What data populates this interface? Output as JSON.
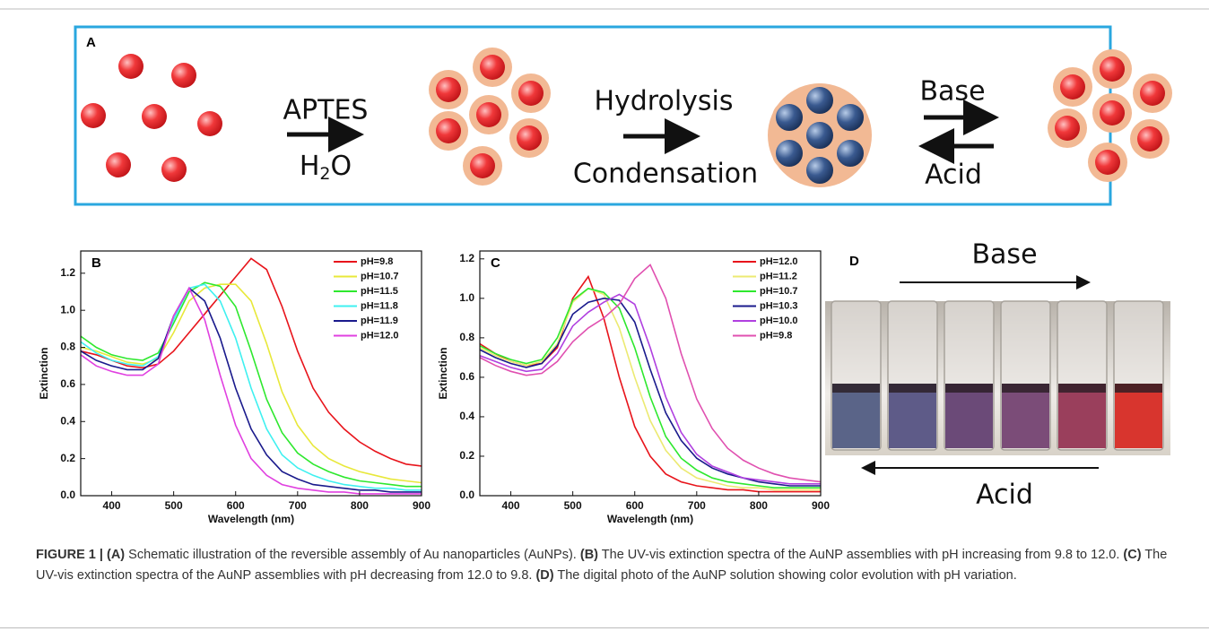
{
  "panel_a": {
    "label": "A",
    "step1_above": "APTES",
    "step1_below": {
      "before": "H",
      "subscript": "2",
      "after": "O"
    },
    "step2_above": "Hydrolysis",
    "step2_below": "Condensation",
    "forward": "Base",
    "backward": "Acid"
  },
  "chart_data": [
    {
      "type": "line",
      "panel_label": "B",
      "x_label": "Wavelength (nm)",
      "y_label": "Extinction",
      "x": [
        350,
        375,
        400,
        425,
        450,
        475,
        500,
        525,
        550,
        575,
        600,
        625,
        650,
        675,
        700,
        725,
        750,
        775,
        800,
        825,
        850,
        875,
        900
      ],
      "xlim": [
        350,
        900
      ],
      "xticks": [
        400,
        500,
        600,
        700,
        800,
        900
      ],
      "ylim": [
        0,
        1.32
      ],
      "yticks": [
        {
          "value": 0,
          "label": "0.0"
        },
        0.2,
        0.4,
        0.6,
        0.8,
        {
          "value": 1,
          "label": "1.0"
        },
        1.2
      ],
      "grid": false,
      "legend": "upper right",
      "series": [
        {
          "name": "pH=9.8",
          "color": "#e8141b",
          "values": [
            0.78,
            0.76,
            0.73,
            0.7,
            0.69,
            0.71,
            0.78,
            0.88,
            0.98,
            1.08,
            1.18,
            1.28,
            1.22,
            1.02,
            0.78,
            0.58,
            0.45,
            0.36,
            0.29,
            0.24,
            0.2,
            0.17,
            0.16
          ]
        },
        {
          "name": "pH=10.7",
          "color": "#e8e83a",
          "values": [
            0.8,
            0.78,
            0.75,
            0.72,
            0.71,
            0.74,
            0.88,
            1.05,
            1.12,
            1.14,
            1.14,
            1.05,
            0.82,
            0.56,
            0.38,
            0.27,
            0.2,
            0.16,
            0.13,
            0.11,
            0.09,
            0.08,
            0.07
          ]
        },
        {
          "name": "pH=11.5",
          "color": "#2ee82e",
          "values": [
            0.86,
            0.8,
            0.76,
            0.74,
            0.73,
            0.77,
            0.93,
            1.1,
            1.15,
            1.13,
            1.02,
            0.78,
            0.52,
            0.34,
            0.23,
            0.17,
            0.13,
            0.1,
            0.08,
            0.07,
            0.06,
            0.05,
            0.05
          ]
        },
        {
          "name": "pH=11.8",
          "color": "#3ff0f0",
          "values": [
            0.83,
            0.77,
            0.73,
            0.71,
            0.7,
            0.75,
            0.95,
            1.12,
            1.14,
            1.05,
            0.85,
            0.58,
            0.36,
            0.22,
            0.15,
            0.11,
            0.08,
            0.06,
            0.05,
            0.04,
            0.04,
            0.03,
            0.03
          ]
        },
        {
          "name": "pH=11.9",
          "color": "#1a1a8c",
          "values": [
            0.78,
            0.73,
            0.7,
            0.68,
            0.68,
            0.74,
            0.97,
            1.12,
            1.05,
            0.85,
            0.58,
            0.36,
            0.22,
            0.13,
            0.09,
            0.06,
            0.05,
            0.04,
            0.03,
            0.03,
            0.02,
            0.02,
            0.02
          ]
        },
        {
          "name": "pH=12.0",
          "color": "#e040e0",
          "values": [
            0.76,
            0.7,
            0.67,
            0.65,
            0.65,
            0.71,
            0.97,
            1.12,
            0.95,
            0.65,
            0.38,
            0.2,
            0.11,
            0.06,
            0.04,
            0.03,
            0.02,
            0.02,
            0.01,
            0.01,
            0.01,
            0.01,
            0.01
          ]
        }
      ]
    },
    {
      "type": "line",
      "panel_label": "C",
      "x_label": "Wavelength (nm)",
      "y_label": "Extinction",
      "x": [
        350,
        375,
        400,
        425,
        450,
        475,
        500,
        525,
        550,
        575,
        600,
        625,
        650,
        675,
        700,
        725,
        750,
        775,
        800,
        825,
        850,
        875,
        900
      ],
      "xlim": [
        350,
        900
      ],
      "xticks": [
        400,
        500,
        600,
        700,
        800,
        900
      ],
      "ylim": [
        0,
        1.24
      ],
      "yticks": [
        {
          "value": 0,
          "label": "0.0"
        },
        0.2,
        0.4,
        0.6,
        0.8,
        {
          "value": 1,
          "label": "1.0"
        },
        1.2
      ],
      "grid": false,
      "legend": "upper right",
      "series": [
        {
          "name": "pH=12.0",
          "color": "#e8141b",
          "values": [
            0.77,
            0.72,
            0.68,
            0.66,
            0.67,
            0.75,
            1.0,
            1.11,
            0.9,
            0.6,
            0.35,
            0.2,
            0.11,
            0.07,
            0.05,
            0.04,
            0.03,
            0.03,
            0.02,
            0.02,
            0.02,
            0.02,
            0.02
          ]
        },
        {
          "name": "pH=11.2",
          "color": "#ecea72",
          "values": [
            0.75,
            0.71,
            0.68,
            0.66,
            0.68,
            0.77,
            0.98,
            1.05,
            1.02,
            0.85,
            0.6,
            0.38,
            0.23,
            0.14,
            0.09,
            0.07,
            0.05,
            0.04,
            0.04,
            0.03,
            0.03,
            0.03,
            0.03
          ]
        },
        {
          "name": "pH=10.7",
          "color": "#2ee82e",
          "values": [
            0.76,
            0.72,
            0.69,
            0.67,
            0.69,
            0.8,
            0.99,
            1.05,
            1.03,
            0.95,
            0.75,
            0.5,
            0.3,
            0.19,
            0.13,
            0.09,
            0.07,
            0.06,
            0.05,
            0.04,
            0.04,
            0.04,
            0.04
          ]
        },
        {
          "name": "pH=10.3",
          "color": "#1a1a8c",
          "values": [
            0.74,
            0.7,
            0.67,
            0.65,
            0.67,
            0.76,
            0.92,
            0.98,
            1.0,
            0.99,
            0.88,
            0.64,
            0.42,
            0.28,
            0.19,
            0.14,
            0.11,
            0.09,
            0.07,
            0.06,
            0.05,
            0.05,
            0.05
          ]
        },
        {
          "name": "pH=10.0",
          "color": "#b040e0",
          "values": [
            0.71,
            0.68,
            0.65,
            0.63,
            0.64,
            0.72,
            0.86,
            0.93,
            0.98,
            1.02,
            0.97,
            0.75,
            0.5,
            0.32,
            0.21,
            0.15,
            0.12,
            0.09,
            0.08,
            0.07,
            0.06,
            0.06,
            0.06
          ]
        },
        {
          "name": "pH=9.8",
          "color": "#e050b0",
          "values": [
            0.7,
            0.66,
            0.63,
            0.61,
            0.62,
            0.68,
            0.78,
            0.85,
            0.9,
            0.97,
            1.1,
            1.17,
            1.0,
            0.72,
            0.49,
            0.34,
            0.24,
            0.18,
            0.14,
            0.11,
            0.09,
            0.08,
            0.07
          ]
        }
      ]
    }
  ],
  "panel_d": {
    "label": "D",
    "top_arrow": "Base",
    "bottom_arrow": "Acid"
  },
  "caption": [
    {
      "text": "FIGURE 1 | ",
      "bold": true
    },
    {
      "text": "(A)",
      "bold": true
    },
    {
      "text": " Schematic illustration of the reversible assembly of Au nanoparticles (AuNPs). ",
      "bold": false
    },
    {
      "text": "(B)",
      "bold": true
    },
    {
      "text": " The UV-vis extinction spectra of the AuNP assemblies with pH increasing from 9.8 to 12.0. ",
      "bold": false
    },
    {
      "text": "(C)",
      "bold": true
    },
    {
      "text": " The UV-vis extinction spectra of the AuNP assemblies with pH decreasing from 12.0 to 9.8. ",
      "bold": false
    },
    {
      "text": "(D)",
      "bold": true
    },
    {
      "text": " The digital photo of the AuNP solution showing color evolution with pH variation.",
      "bold": false
    }
  ]
}
